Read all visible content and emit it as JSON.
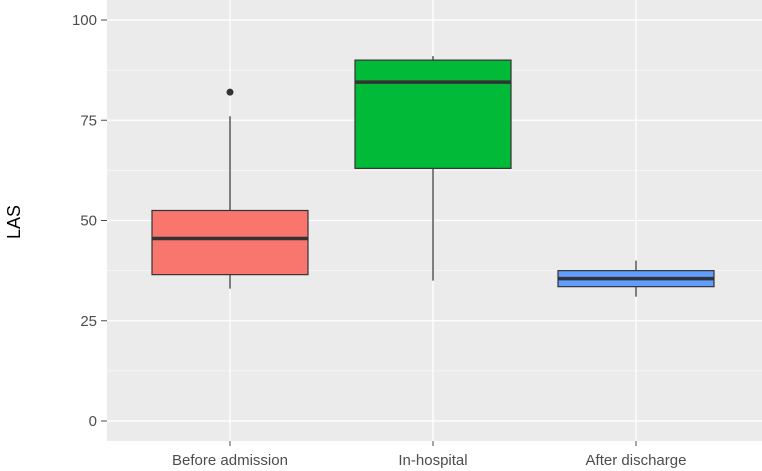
{
  "chart_data": {
    "type": "box",
    "ylabel": "LAS",
    "xlabel": "",
    "ylim": [
      -5,
      105
    ],
    "yticks": [
      0,
      25,
      50,
      75,
      100
    ],
    "ytick_labels": [
      "0",
      "25",
      "50",
      "75",
      "100"
    ],
    "grid": true,
    "legend": "none",
    "categories": [
      "Before admission",
      "In-hospital",
      "After discharge"
    ],
    "boxes": [
      {
        "category": "Before admission",
        "whisker_low": 33,
        "q1": 36.5,
        "median": 45.5,
        "q3": 52.5,
        "whisker_high": 76,
        "outliers": [
          82
        ],
        "color": "#F8766D"
      },
      {
        "category": "In-hospital",
        "whisker_low": 35,
        "q1": 63,
        "median": 84.5,
        "q3": 90,
        "whisker_high": 91,
        "outliers": [],
        "color": "#00BA38"
      },
      {
        "category": "After discharge",
        "whisker_low": 31,
        "q1": 33.5,
        "median": 35.5,
        "q3": 37.5,
        "whisker_high": 40,
        "outliers": [],
        "color": "#619CFF"
      }
    ],
    "colors": {
      "panel": "#EBEBEB",
      "grid": "#FFFFFF",
      "box_outline": "#333333",
      "whisker": "#7F7F7F"
    }
  }
}
